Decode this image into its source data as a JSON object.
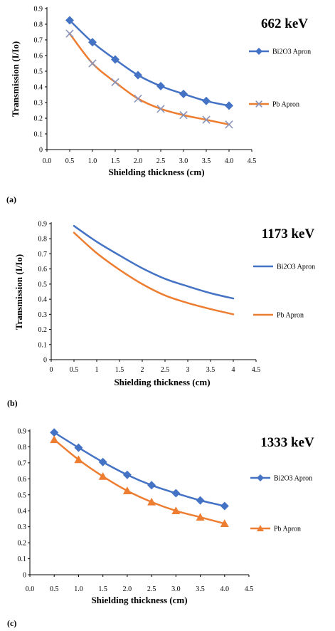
{
  "chart_data": [
    {
      "type": "line",
      "panel_label": "(a)",
      "energy_label": "662 keV",
      "xlabel": "Shielding thickness (cm)",
      "ylabel": "Transmission (I/Io)",
      "x_ticks": [
        "0.0",
        "0.5",
        "1.0",
        "1.5",
        "2.0",
        "2.5",
        "3.0",
        "3.5",
        "4.0",
        "4.5"
      ],
      "y_ticks": [
        "0",
        "0.1",
        "0.2",
        "0.3",
        "0.4",
        "0.5",
        "0.6",
        "0.7",
        "0.8",
        "0.9"
      ],
      "xlim": [
        0,
        4.5
      ],
      "ylim": [
        0,
        0.9
      ],
      "grid": false,
      "legend_position": "right",
      "x": [
        0.5,
        1.0,
        1.5,
        2.0,
        2.5,
        3.0,
        3.5,
        4.0
      ],
      "series": [
        {
          "name": "Bi2O3 Apron",
          "color": "#4472c4",
          "marker": "diamond",
          "values": [
            0.825,
            0.685,
            0.575,
            0.475,
            0.405,
            0.355,
            0.31,
            0.28
          ]
        },
        {
          "name": "Pb Apron",
          "color": "#ed7d31",
          "marker": "x",
          "values": [
            0.74,
            0.55,
            0.43,
            0.325,
            0.26,
            0.22,
            0.19,
            0.16
          ]
        }
      ]
    },
    {
      "type": "line",
      "panel_label": "(b)",
      "energy_label": "1173 keV",
      "xlabel": "Shielding thickness (cm)",
      "ylabel": "Transmission (I/Io)",
      "x_ticks": [
        "0",
        "0.5",
        "1",
        "1.5",
        "2",
        "2.5",
        "3",
        "3.5",
        "4",
        "4.5"
      ],
      "y_ticks": [
        "0",
        "0.1",
        "0.2",
        "0.3",
        "0.4",
        "0.5",
        "0.6",
        "0.7",
        "0.8",
        "0.9"
      ],
      "xlim": [
        0,
        4.5
      ],
      "ylim": [
        0,
        0.9
      ],
      "grid": false,
      "legend_position": "right",
      "x": [
        0.5,
        1.0,
        1.5,
        2.0,
        2.5,
        3.0,
        3.5,
        4.0
      ],
      "series": [
        {
          "name": "Bi2O3 Apron",
          "color": "#4472c4",
          "marker": "none",
          "values": [
            0.885,
            0.78,
            0.69,
            0.605,
            0.535,
            0.485,
            0.44,
            0.405
          ]
        },
        {
          "name": "Pb Apron",
          "color": "#ed7d31",
          "marker": "none",
          "values": [
            0.84,
            0.705,
            0.595,
            0.5,
            0.425,
            0.375,
            0.335,
            0.3
          ]
        }
      ]
    },
    {
      "type": "line",
      "panel_label": "(c)",
      "energy_label": "1333 keV",
      "xlabel": "Shielding thickness (cm)",
      "ylabel": "",
      "x_ticks": [
        "0.0",
        "0.5",
        "1.0",
        "1.5",
        "2.0",
        "2.5",
        "3.0",
        "3.5",
        "4.0",
        "4.5"
      ],
      "y_ticks": [
        "0",
        "0.1",
        "0.2",
        "0.3",
        "0.4",
        "0.5",
        "0.6",
        "0.7",
        "0.8",
        "0.9"
      ],
      "xlim": [
        0,
        4.5
      ],
      "ylim": [
        0,
        0.9
      ],
      "grid": false,
      "legend_position": "right",
      "x": [
        0.5,
        1.0,
        1.5,
        2.0,
        2.5,
        3.0,
        3.5,
        4.0
      ],
      "series": [
        {
          "name": "Bi2O3 Apron",
          "color": "#4472c4",
          "marker": "diamond",
          "values": [
            0.89,
            0.795,
            0.705,
            0.625,
            0.56,
            0.51,
            0.465,
            0.43
          ]
        },
        {
          "name": "Pb Apron",
          "color": "#ed7d31",
          "marker": "triangle",
          "values": [
            0.845,
            0.72,
            0.615,
            0.525,
            0.455,
            0.4,
            0.36,
            0.32
          ]
        }
      ]
    }
  ]
}
